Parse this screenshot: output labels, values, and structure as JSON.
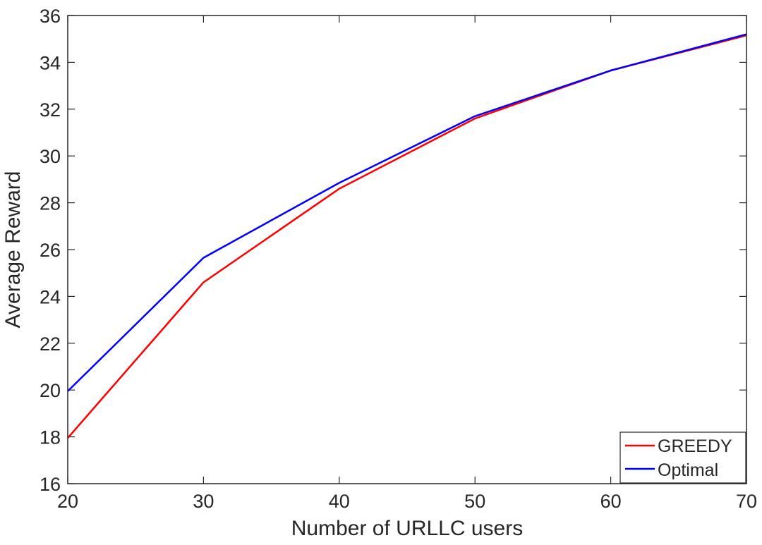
{
  "chart_data": {
    "type": "line",
    "title": "",
    "xlabel": "Number of URLLC users",
    "ylabel": "Average Reward",
    "xlim": [
      20,
      70
    ],
    "ylim": [
      16,
      36
    ],
    "xticks": [
      20,
      30,
      40,
      50,
      60,
      70
    ],
    "yticks": [
      16,
      18,
      20,
      22,
      24,
      26,
      28,
      30,
      32,
      34,
      36
    ],
    "x": [
      20,
      30,
      40,
      50,
      60,
      70
    ],
    "series": [
      {
        "name": "GREEDY",
        "color": "#ff0000",
        "values": [
          17.95,
          24.6,
          28.6,
          31.6,
          33.65,
          35.15
        ]
      },
      {
        "name": "Optimal",
        "color": "#0000ff",
        "values": [
          19.95,
          25.65,
          28.85,
          31.7,
          33.65,
          35.2
        ]
      }
    ],
    "legend_position": "bottom-right",
    "grid": false
  }
}
